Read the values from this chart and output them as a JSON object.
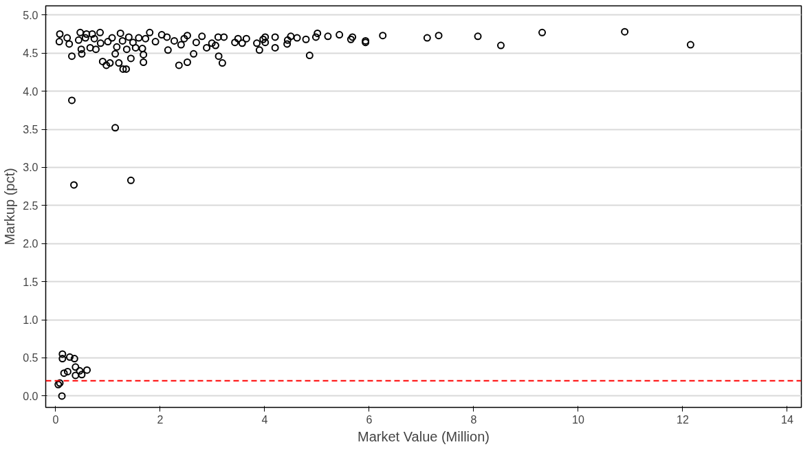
{
  "chart_data": {
    "type": "scatter",
    "xlabel": "Market Value (Million)",
    "ylabel": "Markup (pct)",
    "xlim": [
      -0.19,
      14.27
    ],
    "ylim": [
      -0.15,
      5.12
    ],
    "xticks": [
      0,
      2,
      4,
      6,
      8,
      10,
      12,
      14
    ],
    "yticks": [
      {
        "value": 0,
        "label": "0.0"
      },
      0.5,
      {
        "value": 1,
        "label": "1.0"
      },
      1.5,
      {
        "value": 2,
        "label": "2.0"
      },
      2.5,
      {
        "value": 3,
        "label": "3.0"
      },
      3.5,
      {
        "value": 4,
        "label": "4.0"
      },
      4.5,
      {
        "value": 5,
        "label": "5.0"
      }
    ],
    "grid": "y",
    "marker": "circle",
    "ref_lines": [
      {
        "axis": "y",
        "value": 0.2,
        "label": null,
        "color": "#ff0000",
        "line_style": "dashed"
      }
    ],
    "series": [
      {
        "color": "#000000",
        "x": [
          0.13,
          0.13,
          0.27,
          0.36,
          0.16,
          0.23,
          0.38,
          0.38,
          0.5,
          0.6,
          0.46,
          0.08,
          0.05,
          0.12,
          0.31,
          0.35,
          1.14,
          1.44,
          12.15,
          10.89,
          9.31,
          8.52,
          8.08,
          7.33,
          7.11,
          6.26,
          5.93,
          5.93,
          5.68,
          5.65,
          5.43,
          5.21,
          5.01,
          4.98,
          4.86,
          4.79,
          4.62,
          4.5,
          4.44,
          4.43,
          4.2,
          4.2,
          4.01,
          4.01,
          3.97,
          3.9,
          3.85,
          3.65,
          3.57,
          3.49,
          3.43,
          3.22,
          3.19,
          3.12,
          3.11,
          3.06,
          2.99,
          2.89,
          2.8,
          2.69,
          2.64,
          2.52,
          2.52,
          2.46,
          2.36,
          2.4,
          2.27,
          2.13,
          2.15,
          2.03,
          1.91,
          1.8,
          1.68,
          1.68,
          1.66,
          1.72,
          0.08,
          0.07,
          0.22,
          0.26,
          0.31,
          0.44,
          0.47,
          0.49,
          0.5,
          0.57,
          0.59,
          0.66,
          0.7,
          0.74,
          0.77,
          0.85,
          0.86,
          0.9,
          0.97,
          1.04,
          1.0,
          1.08,
          1.14,
          1.17,
          1.21,
          1.24,
          1.28,
          1.29,
          1.35,
          1.36,
          1.4,
          1.44,
          1.48,
          1.53,
          1.59
        ],
        "values": [
          0.55,
          0.49,
          0.51,
          0.49,
          0.3,
          0.32,
          0.38,
          0.27,
          0.28,
          0.34,
          0.33,
          0.17,
          0.15,
          0.0,
          3.88,
          2.77,
          3.52,
          2.83,
          4.61,
          4.78,
          4.77,
          4.6,
          4.72,
          4.73,
          4.7,
          4.73,
          4.64,
          4.66,
          4.71,
          4.68,
          4.74,
          4.72,
          4.76,
          4.71,
          4.47,
          4.68,
          4.7,
          4.72,
          4.67,
          4.62,
          4.71,
          4.57,
          4.71,
          4.64,
          4.68,
          4.54,
          4.63,
          4.69,
          4.63,
          4.69,
          4.64,
          4.71,
          4.37,
          4.46,
          4.71,
          4.6,
          4.63,
          4.57,
          4.72,
          4.64,
          4.49,
          4.73,
          4.38,
          4.69,
          4.34,
          4.61,
          4.66,
          4.71,
          4.54,
          4.74,
          4.65,
          4.77,
          4.38,
          4.48,
          4.56,
          4.69,
          4.75,
          4.65,
          4.7,
          4.62,
          4.46,
          4.67,
          4.77,
          4.55,
          4.49,
          4.7,
          4.75,
          4.57,
          4.75,
          4.69,
          4.55,
          4.77,
          4.63,
          4.39,
          4.34,
          4.37,
          4.65,
          4.7,
          4.49,
          4.58,
          4.37,
          4.76,
          4.66,
          4.29,
          4.29,
          4.55,
          4.71,
          4.43,
          4.64,
          4.57,
          4.7
        ]
      }
    ]
  }
}
